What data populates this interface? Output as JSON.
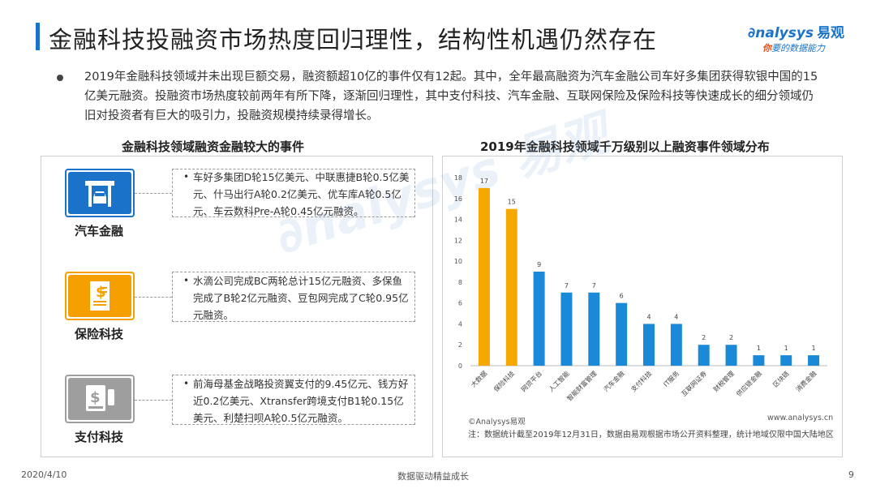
{
  "header": {
    "title": "金融科技投融资市场热度回归理性，结构性机遇仍然存在",
    "logo_en": "nalysys",
    "logo_zh": "易观",
    "logo_slogan_ni": "你",
    "logo_slogan_rest": "要的数据能力"
  },
  "intro": {
    "text": "2019年金融科技领域并未出现巨额交易，融资额超10亿的事件仅有12起。其中，全年最高融资为汽车金融公司车好多集团获得软银中国的15亿美元融资。投融资市场热度较前两年有所下降，逐渐回归理性，其中支付科技、汽车金融、互联网保险及保险科技等快速成长的细分领域仍旧对投资者有巨大的吸引力，投融资规模持续录得增长。"
  },
  "left_section": {
    "title": "金融科技领域融资金融较大的事件",
    "categories": [
      {
        "label": "汽车金融",
        "icon": "car-garage-icon",
        "color": "#1a73c8",
        "event": "车好多集团D轮15亿美元、中联惠捷B轮0.5亿美元、什马出行A轮0.2亿美元、优车库A轮0.5亿元、车云数科Pre-A轮0.45亿元融资。"
      },
      {
        "label": "保险科技",
        "icon": "insurance-document-icon",
        "color": "#f5a000",
        "event": "水滴公司完成BC两轮总计15亿元融资、多保鱼完成了B轮2亿元融资、豆包网完成了C轮0.95亿元融资。"
      },
      {
        "label": "支付科技",
        "icon": "payment-terminal-icon",
        "color": "#9e9e9e",
        "event": "前海母基金战略投资翼支付的9.45亿元、钱方好近0.2亿美元、Xtransfer跨境支付B1轮0.15亿美元、利楚扫呗A轮0.5亿元融资。"
      }
    ]
  },
  "right_section": {
    "title": "2019年金融科技领域千万级别以上融资事件领域分布"
  },
  "chart_data": {
    "type": "bar",
    "categories": [
      "大数据",
      "保险科技",
      "网贷平台",
      "人工智能",
      "智能财富管理",
      "汽车金融",
      "支付科技",
      "IT服务",
      "互联网证券",
      "财税管理",
      "供应链金融",
      "区块链",
      "消费金融"
    ],
    "values": [
      17,
      15,
      9,
      7,
      7,
      6,
      4,
      4,
      2,
      2,
      1,
      1,
      1
    ],
    "highlight_colors": [
      "#f5a800",
      "#f5a800",
      "#1a8ad8",
      "#1a8ad8",
      "#1a8ad8",
      "#1a8ad8",
      "#1a8ad8",
      "#1a8ad8",
      "#1a8ad8",
      "#1a8ad8",
      "#1a8ad8",
      "#1a8ad8",
      "#1a8ad8"
    ],
    "yticks": [
      0,
      2,
      4,
      6,
      8,
      10,
      12,
      14,
      16,
      18
    ],
    "ylim": [
      0,
      18
    ],
    "title": "",
    "xlabel": "",
    "ylabel": "",
    "grid": false
  },
  "chart_footer": {
    "copyright": "©Analysys易观",
    "website": "www.analysys.cn",
    "note": "注：数据统计截至2019年12月31日，数据由易观根据市场公开资料整理，统计地域仅限中国大陆地区"
  },
  "footer": {
    "date": "2020/4/10",
    "slogan": "数据驱动精益成长",
    "page": "9"
  }
}
